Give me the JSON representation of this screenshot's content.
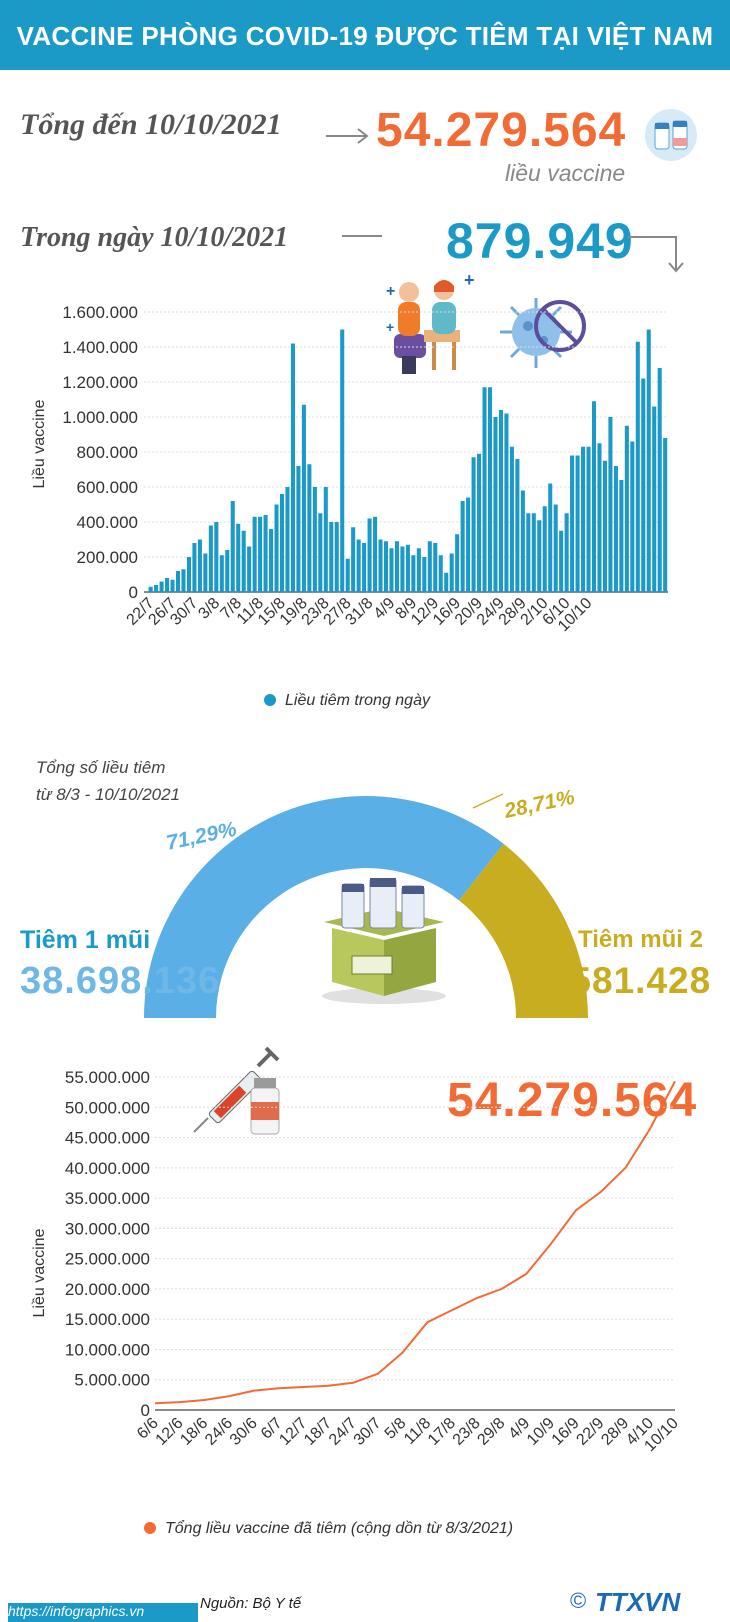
{
  "header": {
    "title": "VACCINE PHÒNG COVID-19 ĐƯỢC TIÊM TẠI VIỆT NAM"
  },
  "summary": {
    "total_label": "Tổng đến 10/10/2021",
    "total_value": "54.279.564",
    "total_unit": "liều vaccine",
    "daily_label": "Trong ngày 10/10/2021",
    "daily_value": "879.949"
  },
  "doses": {
    "caption_line1": "Tổng số liều tiêm",
    "caption_line2": "từ 8/3 - 10/10/2021",
    "dose1_label": "Tiêm 1 mũi",
    "dose1_value": "38.698.136",
    "dose1_pct": "71,29%",
    "dose2_label": "Tiêm mũi 2",
    "dose2_value": "15.581.428",
    "dose2_pct": "28,71%"
  },
  "cumulative": {
    "value": "54.279.564"
  },
  "footer": {
    "source": "Nguồn: Bộ Y tế",
    "url": "https://infographics.vn",
    "logo": "TTXVN"
  },
  "colors": {
    "blue": "#1b9ac8",
    "orange": "#f26b34",
    "gold": "#c9ad20",
    "light_blue": "#6db8e6"
  },
  "chart_data": [
    {
      "type": "bar",
      "ylabel": "Liều vaccine",
      "ylim": [
        0,
        1600000
      ],
      "y_ticks": [
        "0",
        "200.000",
        "400.000",
        "600.000",
        "800.000",
        "1.000.000",
        "1.200.000",
        "1.400.000",
        "1.600.000"
      ],
      "x_tick_labels": [
        "22/7",
        "26/7",
        "30/7",
        "3/8",
        "7/8",
        "11/8",
        "15/8",
        "19/8",
        "23/8",
        "27/8",
        "31/8",
        "4/9",
        "8/9",
        "12/9",
        "16/9",
        "20/9",
        "24/9",
        "28/9",
        "2/10",
        "6/10",
        "10/10"
      ],
      "series": [
        {
          "name": "Liều tiêm trong ngày",
          "values": [
            30000,
            40000,
            60000,
            80000,
            70000,
            120000,
            130000,
            200000,
            280000,
            300000,
            220000,
            380000,
            400000,
            210000,
            240000,
            520000,
            390000,
            350000,
            260000,
            430000,
            430000,
            440000,
            360000,
            500000,
            560000,
            600000,
            1420000,
            720000,
            1070000,
            730000,
            600000,
            450000,
            600000,
            400000,
            400000,
            1500000,
            190000,
            370000,
            300000,
            280000,
            420000,
            430000,
            300000,
            290000,
            250000,
            290000,
            260000,
            270000,
            210000,
            250000,
            200000,
            290000,
            280000,
            210000,
            110000,
            220000,
            330000,
            520000,
            540000,
            770000,
            790000,
            1170000,
            1170000,
            1000000,
            1040000,
            1020000,
            830000,
            760000,
            580000,
            450000,
            450000,
            410000,
            490000,
            620000,
            500000,
            350000,
            450000,
            780000,
            780000,
            830000,
            830000,
            1090000,
            850000,
            750000,
            1000000,
            720000,
            640000,
            950000,
            860000,
            1430000,
            1220000,
            1500000,
            1060000,
            1280000,
            880000
          ]
        }
      ]
    },
    {
      "type": "line",
      "ylabel": "Liều vaccine",
      "ylim": [
        0,
        55000000
      ],
      "y_ticks": [
        "0",
        "5.000.000",
        "10.000.000",
        "15.000.000",
        "20.000.000",
        "25.000.000",
        "30.000.000",
        "35.000.000",
        "40.000.000",
        "45.000.000",
        "50.000.000",
        "55.000.000"
      ],
      "x_tick_labels": [
        "6/6",
        "12/6",
        "18/6",
        "24/6",
        "30/6",
        "6/7",
        "12/7",
        "18/7",
        "24/7",
        "30/7",
        "5/8",
        "11/8",
        "17/8",
        "23/8",
        "29/8",
        "4/9",
        "10/9",
        "16/9",
        "22/9",
        "28/9",
        "4/10",
        "10/10"
      ],
      "series": [
        {
          "name": "Tổng liều vaccine đã tiêm (cộng dồn từ 8/3/2021)",
          "values": [
            1100000,
            1300000,
            1650000,
            2300000,
            3200000,
            3600000,
            3800000,
            4000000,
            4500000,
            6000000,
            9500000,
            14500000,
            16500000,
            18500000,
            20000000,
            22500000,
            27500000,
            33000000,
            36000000,
            40000000,
            46500000,
            54279564
          ]
        }
      ]
    }
  ]
}
